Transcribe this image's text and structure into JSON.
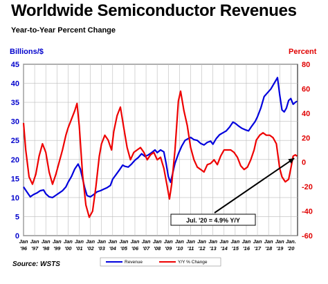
{
  "chart_data": {
    "type": "line",
    "title": "Worldwide Semiconductor Revenues",
    "subtitle": "Year-to-Year Percent Change",
    "y_left_label": "Billions/$",
    "y_right_label": "Percent",
    "y_left_range": [
      0,
      45
    ],
    "y_left_ticks": [
      "0",
      "5",
      "10",
      "15",
      "20",
      "25",
      "30",
      "35",
      "40",
      "45"
    ],
    "y_right_range": [
      -60,
      80
    ],
    "y_right_ticks": [
      "-60",
      "-40",
      "-20",
      "0",
      "20",
      "40",
      "60",
      "80"
    ],
    "x_range": [
      1996,
      2020.6
    ],
    "x_tick_labels": [
      {
        "top": "Jan",
        "bottom": "'96"
      },
      {
        "top": "Jan",
        "bottom": "'97"
      },
      {
        "top": "Jan",
        "bottom": "'98"
      },
      {
        "top": "Jan",
        "bottom": "'99"
      },
      {
        "top": "Jan",
        "bottom": "'00"
      },
      {
        "top": "Jan",
        "bottom": "'01"
      },
      {
        "top": "Jan",
        "bottom": "'02"
      },
      {
        "top": "Jan",
        "bottom": "'03"
      },
      {
        "top": "Jan",
        "bottom": "'04"
      },
      {
        "top": "Jan",
        "bottom": "'05"
      },
      {
        "top": "Jan",
        "bottom": "'06"
      },
      {
        "top": "Jan",
        "bottom": "'07"
      },
      {
        "top": "Jan",
        "bottom": "'08"
      },
      {
        "top": "Jan",
        "bottom": "'09"
      },
      {
        "top": "Jan",
        "bottom": "'10"
      },
      {
        "top": "Jan",
        "bottom": "'11"
      },
      {
        "top": "Jan",
        "bottom": "'12"
      },
      {
        "top": "Jan",
        "bottom": "'13"
      },
      {
        "top": "Jan",
        "bottom": "'14"
      },
      {
        "top": "Jan",
        "bottom": "'15"
      },
      {
        "top": "Jan",
        "bottom": "'16"
      },
      {
        "top": "Jan",
        "bottom": "'17"
      },
      {
        "top": "Jan",
        "bottom": "'18"
      },
      {
        "top": "Jan",
        "bottom": "'19"
      },
      {
        "top": "Jan.",
        "bottom": "'20"
      }
    ],
    "grid": true,
    "legend_position": "bottom-center",
    "series": [
      {
        "name": "Revenue",
        "axis": "left",
        "color": "#0000dd",
        "points": [
          [
            1996.0,
            12.8
          ],
          [
            1996.3,
            11.5
          ],
          [
            1996.6,
            10.2
          ],
          [
            1996.9,
            10.8
          ],
          [
            1997.2,
            11.2
          ],
          [
            1997.5,
            11.8
          ],
          [
            1997.8,
            12.0
          ],
          [
            1998.0,
            11.0
          ],
          [
            1998.3,
            10.2
          ],
          [
            1998.6,
            10.0
          ],
          [
            1998.9,
            10.6
          ],
          [
            1999.2,
            11.2
          ],
          [
            1999.5,
            11.8
          ],
          [
            1999.8,
            12.8
          ],
          [
            2000.0,
            14.0
          ],
          [
            2000.3,
            15.5
          ],
          [
            2000.6,
            17.5
          ],
          [
            2000.9,
            18.8
          ],
          [
            2001.1,
            17.5
          ],
          [
            2001.3,
            15.0
          ],
          [
            2001.5,
            12.5
          ],
          [
            2001.7,
            10.5
          ],
          [
            2002.0,
            10.2
          ],
          [
            2002.3,
            10.8
          ],
          [
            2002.6,
            11.5
          ],
          [
            2002.9,
            11.8
          ],
          [
            2003.2,
            12.2
          ],
          [
            2003.5,
            12.6
          ],
          [
            2003.8,
            13.2
          ],
          [
            2004.0,
            14.8
          ],
          [
            2004.3,
            16.0
          ],
          [
            2004.6,
            17.2
          ],
          [
            2004.9,
            18.5
          ],
          [
            2005.1,
            18.2
          ],
          [
            2005.4,
            18.0
          ],
          [
            2005.7,
            18.8
          ],
          [
            2006.0,
            19.8
          ],
          [
            2006.3,
            20.5
          ],
          [
            2006.6,
            21.5
          ],
          [
            2006.9,
            20.8
          ],
          [
            2007.2,
            21.2
          ],
          [
            2007.5,
            21.8
          ],
          [
            2007.8,
            22.5
          ],
          [
            2008.0,
            21.8
          ],
          [
            2008.3,
            22.5
          ],
          [
            2008.6,
            22.0
          ],
          [
            2008.8,
            19.0
          ],
          [
            2009.0,
            15.5
          ],
          [
            2009.2,
            14.0
          ],
          [
            2009.4,
            16.5
          ],
          [
            2009.6,
            19.0
          ],
          [
            2009.9,
            21.5
          ],
          [
            2010.2,
            23.5
          ],
          [
            2010.5,
            25.0
          ],
          [
            2010.8,
            25.5
          ],
          [
            2011.0,
            25.8
          ],
          [
            2011.3,
            25.2
          ],
          [
            2011.6,
            25.0
          ],
          [
            2011.9,
            24.2
          ],
          [
            2012.2,
            23.8
          ],
          [
            2012.5,
            24.5
          ],
          [
            2012.8,
            24.8
          ],
          [
            2013.0,
            24.0
          ],
          [
            2013.3,
            25.5
          ],
          [
            2013.6,
            26.5
          ],
          [
            2013.9,
            27.0
          ],
          [
            2014.2,
            27.5
          ],
          [
            2014.5,
            28.5
          ],
          [
            2014.8,
            29.8
          ],
          [
            2015.0,
            29.5
          ],
          [
            2015.3,
            28.8
          ],
          [
            2015.6,
            28.2
          ],
          [
            2015.9,
            27.8
          ],
          [
            2016.2,
            27.5
          ],
          [
            2016.5,
            28.8
          ],
          [
            2016.8,
            30.0
          ],
          [
            2017.0,
            31.2
          ],
          [
            2017.3,
            33.5
          ],
          [
            2017.6,
            36.5
          ],
          [
            2017.9,
            37.5
          ],
          [
            2018.2,
            38.5
          ],
          [
            2018.5,
            40.0
          ],
          [
            2018.8,
            41.5
          ],
          [
            2019.0,
            37.0
          ],
          [
            2019.2,
            33.0
          ],
          [
            2019.4,
            32.5
          ],
          [
            2019.6,
            33.5
          ],
          [
            2019.8,
            35.5
          ],
          [
            2020.0,
            36.0
          ],
          [
            2020.2,
            34.5
          ],
          [
            2020.4,
            35.0
          ],
          [
            2020.55,
            35.3
          ]
        ]
      },
      {
        "name": "Y/Y % Change",
        "axis": "right",
        "color": "#ee0000",
        "points": [
          [
            1996.0,
            32
          ],
          [
            1996.2,
            10
          ],
          [
            1996.5,
            -12
          ],
          [
            1996.8,
            -18
          ],
          [
            1997.1,
            -10
          ],
          [
            1997.4,
            5
          ],
          [
            1997.7,
            15
          ],
          [
            1998.0,
            8
          ],
          [
            1998.3,
            -8
          ],
          [
            1998.6,
            -18
          ],
          [
            1998.9,
            -10
          ],
          [
            1999.2,
            0
          ],
          [
            1999.5,
            10
          ],
          [
            1999.8,
            22
          ],
          [
            2000.0,
            28
          ],
          [
            2000.3,
            35
          ],
          [
            2000.6,
            42
          ],
          [
            2000.8,
            48
          ],
          [
            2001.0,
            30
          ],
          [
            2001.3,
            -10
          ],
          [
            2001.6,
            -35
          ],
          [
            2001.9,
            -45
          ],
          [
            2002.2,
            -40
          ],
          [
            2002.5,
            -20
          ],
          [
            2002.8,
            5
          ],
          [
            2003.0,
            15
          ],
          [
            2003.3,
            22
          ],
          [
            2003.6,
            18
          ],
          [
            2003.9,
            10
          ],
          [
            2004.1,
            25
          ],
          [
            2004.4,
            38
          ],
          [
            2004.7,
            45
          ],
          [
            2005.0,
            28
          ],
          [
            2005.3,
            12
          ],
          [
            2005.6,
            2
          ],
          [
            2005.9,
            8
          ],
          [
            2006.2,
            10
          ],
          [
            2006.5,
            12
          ],
          [
            2006.8,
            8
          ],
          [
            2007.1,
            2
          ],
          [
            2007.4,
            6
          ],
          [
            2007.7,
            8
          ],
          [
            2008.0,
            2
          ],
          [
            2008.3,
            4
          ],
          [
            2008.6,
            -5
          ],
          [
            2008.9,
            -20
          ],
          [
            2009.1,
            -30
          ],
          [
            2009.3,
            -18
          ],
          [
            2009.6,
            10
          ],
          [
            2009.9,
            50
          ],
          [
            2010.1,
            58
          ],
          [
            2010.4,
            42
          ],
          [
            2010.7,
            30
          ],
          [
            2011.0,
            12
          ],
          [
            2011.3,
            2
          ],
          [
            2011.6,
            -4
          ],
          [
            2011.9,
            -6
          ],
          [
            2012.2,
            -8
          ],
          [
            2012.5,
            -2
          ],
          [
            2012.8,
            -1
          ],
          [
            2013.1,
            2
          ],
          [
            2013.4,
            -2
          ],
          [
            2013.7,
            5
          ],
          [
            2014.0,
            10
          ],
          [
            2014.3,
            10
          ],
          [
            2014.6,
            10
          ],
          [
            2014.9,
            8
          ],
          [
            2015.2,
            4
          ],
          [
            2015.5,
            -3
          ],
          [
            2015.8,
            -6
          ],
          [
            2016.1,
            -4
          ],
          [
            2016.4,
            2
          ],
          [
            2016.7,
            10
          ],
          [
            2016.9,
            18
          ],
          [
            2017.2,
            22
          ],
          [
            2017.5,
            24
          ],
          [
            2017.8,
            22
          ],
          [
            2018.1,
            22
          ],
          [
            2018.4,
            20
          ],
          [
            2018.7,
            15
          ],
          [
            2019.0,
            -5
          ],
          [
            2019.2,
            -12
          ],
          [
            2019.5,
            -16
          ],
          [
            2019.8,
            -14
          ],
          [
            2020.0,
            -5
          ],
          [
            2020.2,
            5
          ],
          [
            2020.4,
            6
          ],
          [
            2020.55,
            4.9
          ]
        ]
      }
    ],
    "annotation": {
      "text": "Jul. '20 = 4.9% Y/Y",
      "x": 2020.55,
      "y": 4.9,
      "axis": "right"
    },
    "source": "Source: WSTS"
  }
}
